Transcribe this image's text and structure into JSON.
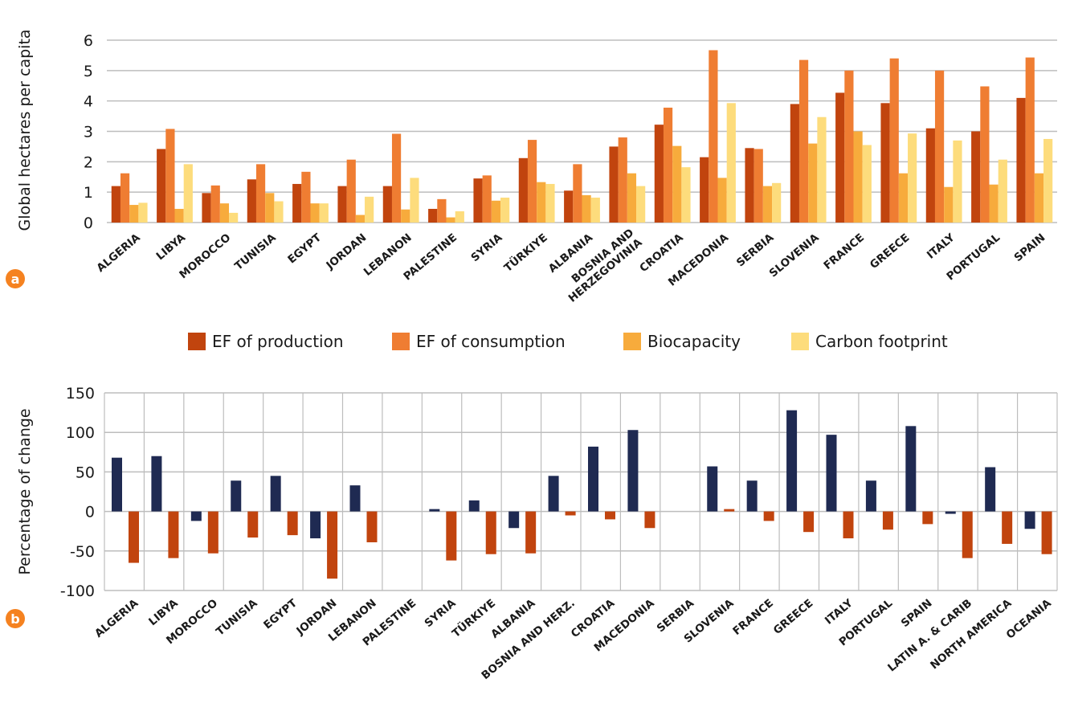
{
  "chart_data": [
    {
      "panel": "a",
      "type": "bar",
      "ylabel": "Global hectares per capita",
      "ylim": [
        0,
        6
      ],
      "yticks": [
        0,
        1,
        2,
        3,
        4,
        5,
        6
      ],
      "grid": "horizontal",
      "legend_placement": "bottom-center",
      "categories": [
        "ALGERIA",
        "LIBYA",
        "MOROCCO",
        "TUNISIA",
        "EGYPT",
        "JORDAN",
        "LEBANON",
        "PALESTINE",
        "SYRIA",
        "TÜRKIYE",
        "ALBANIA",
        "BOSNIA AND HERZEGOVINIA",
        "CROATIA",
        "MACEDONIA",
        "SERBIA",
        "SLOVENIA",
        "FRANCE",
        "GREECE",
        "ITALY",
        "PORTUGAL",
        "SPAIN"
      ],
      "series": [
        {
          "name": "EF of production",
          "color": "#c1440e",
          "values": [
            1.2,
            2.42,
            0.97,
            1.42,
            1.27,
            1.2,
            1.2,
            0.45,
            1.45,
            2.12,
            1.05,
            2.5,
            3.22,
            2.15,
            2.45,
            3.9,
            4.27,
            3.93,
            3.1,
            3.0,
            4.1
          ]
        },
        {
          "name": "EF of consumption",
          "color": "#ef7d32",
          "values": [
            1.62,
            3.08,
            1.22,
            1.92,
            1.67,
            2.07,
            2.92,
            0.77,
            1.55,
            2.72,
            1.92,
            2.8,
            3.78,
            5.67,
            2.42,
            5.35,
            5.0,
            5.4,
            5.0,
            4.48,
            5.43
          ]
        },
        {
          "name": "Biocapacity",
          "color": "#f7ab3c",
          "values": [
            0.58,
            0.45,
            0.63,
            0.97,
            0.63,
            0.25,
            0.43,
            0.17,
            0.72,
            1.33,
            0.9,
            1.62,
            2.52,
            1.47,
            1.2,
            2.6,
            3.0,
            1.62,
            1.17,
            1.25,
            1.62
          ]
        },
        {
          "name": "Carbon footprint",
          "color": "#fddc7c",
          "values": [
            0.65,
            1.92,
            0.32,
            0.7,
            0.63,
            0.85,
            1.47,
            0.37,
            0.82,
            1.27,
            0.82,
            1.2,
            1.82,
            3.93,
            1.3,
            3.47,
            2.55,
            2.93,
            2.7,
            2.07,
            2.75
          ]
        }
      ]
    },
    {
      "panel": "b",
      "type": "bar",
      "ylabel": "Percentage of change",
      "ylim": [
        -100,
        150
      ],
      "yticks": [
        -100,
        -50,
        0,
        50,
        100,
        150
      ],
      "grid": "both",
      "categories": [
        "ALGERIA",
        "LIBYA",
        "MOROCCO",
        "TUNISIA",
        "EGYPT",
        "JORDAN",
        "LEBANON",
        "PALESTINE",
        "SYRIA",
        "TÜRKIYE",
        "ALBANIA",
        "BOSNIA AND HERZ.",
        "CROATIA",
        "MACEDONIA",
        "SERBIA",
        "SLOVENIA",
        "FRANCE",
        "GREECE",
        "ITALY",
        "PORTUGAL",
        "SPAIN",
        "LATIN A. & CARIB",
        "NORTH AMERICA",
        "OCEANIA"
      ],
      "series": [
        {
          "color": "#1f2a52",
          "values": [
            68,
            70,
            -12,
            39,
            45,
            -34,
            33,
            null,
            3,
            14,
            -21,
            45,
            82,
            103,
            null,
            57,
            39,
            128,
            97,
            39,
            108,
            -3,
            56,
            -22
          ]
        },
        {
          "color": "#c1440e",
          "values": [
            -65,
            -59,
            -53,
            -33,
            -30,
            -85,
            -39,
            null,
            -62,
            -54,
            -53,
            -5,
            -10,
            -21,
            null,
            3,
            -12,
            -26,
            -34,
            -23,
            -16,
            -59,
            -41,
            -54
          ]
        }
      ]
    }
  ],
  "badges": {
    "a": "a",
    "b": "b"
  },
  "badge_color": "#f58220"
}
